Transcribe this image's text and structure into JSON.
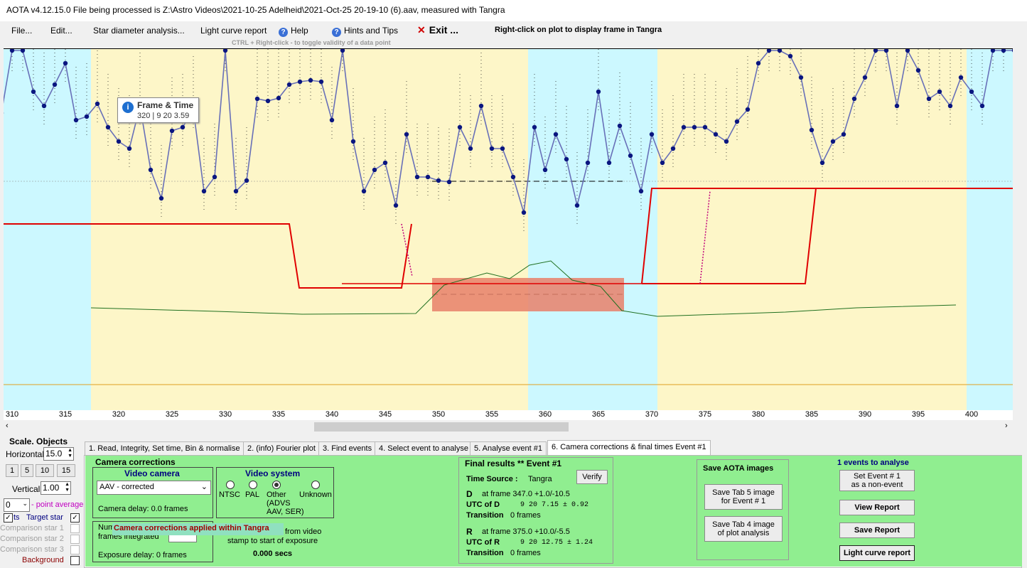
{
  "window": {
    "title": "AOTA v4.12.15.0     File being processed is Z:\\Astro Videos\\2021-10-25 Adelheid\\2021-Oct-25 20-19-10 (6).aav, measured with Tangra"
  },
  "menu": {
    "file": "File...",
    "edit": "Edit...",
    "star_diameter": "Star diameter analysis...",
    "light_curve_report": "Light curve report",
    "help": "Help",
    "hints": "Hints and Tips",
    "exit": "Exit ...",
    "right_click_hint": "Right-click on plot to display frame in Tangra",
    "ctrl_hint": "CTRL + Right-click  -  to toggle validity of a data point"
  },
  "plot": {
    "tooltip_title": "Frame & Time",
    "tooltip_value": "320 |  9 20  3.59",
    "x_ticks": [
      "310",
      "315",
      "320",
      "325",
      "330",
      "335",
      "340",
      "345",
      "350",
      "355",
      "360",
      "365",
      "370",
      "375",
      "380",
      "385",
      "390",
      "395",
      "400"
    ]
  },
  "chart_data": {
    "type": "line",
    "x_start": 308,
    "y_frame_values": [
      93,
      91,
      104,
      106,
      94,
      92,
      95,
      98,
      90,
      90.5,
      92.3,
      89,
      87,
      86,
      92,
      83,
      79,
      88.5,
      89,
      91.5,
      80,
      82,
      101,
      80,
      81.5,
      93,
      92.7,
      93.1,
      95,
      95.4,
      95.6,
      95.4,
      90,
      100.5,
      87,
      80,
      83,
      84,
      78,
      88,
      82,
      82,
      81.5,
      81.3,
      89,
      86,
      92,
      86,
      86,
      82,
      77,
      89,
      83,
      88,
      84.5,
      78,
      84,
      94,
      84,
      89.2,
      85,
      80,
      88,
      84,
      86,
      89,
      89,
      89,
      88,
      87,
      89.8,
      91.5,
      98,
      100,
      102,
      99,
      96,
      88.6,
      84,
      87,
      88,
      93,
      96,
      101.5,
      110,
      92,
      107,
      97,
      93,
      94,
      92,
      96,
      94,
      92,
      100,
      100,
      106,
      111,
      107,
      97
    ],
    "model_levels": {
      "baseline": 100,
      "event_bottom": 94
    },
    "x_range": [
      308,
      403
    ]
  },
  "left": {
    "scale_objects": "Scale.  Objects",
    "horizontal_label": "Horizontal",
    "horizontal_value": "15.0",
    "btn1": "1",
    "btn5": "5",
    "btn10": "10",
    "btn15": "15",
    "vertical_label": "Vertical",
    "vertical_value": "1.00",
    "point_avg_value": "0",
    "point_avg_label": "- point average",
    "pts": "ts",
    "target_star": "Target star",
    "comp1": "Comparison star 1",
    "comp2": "Comparison star 2",
    "comp3": "Comparison star 3",
    "background": "Background"
  },
  "tabs": [
    "1.  Read, Integrity, Set time, Bin & normalise",
    "2. (info)  Fourier plot",
    "3. Find events",
    "4. Select event to analyse",
    "5. Analyse event #1",
    "6. Camera corrections & final times Event #1"
  ],
  "camera": {
    "section_title": "Camera corrections",
    "video_camera_title": "Video camera",
    "camera_select": "AAV - corrected",
    "camera_delay": "Camera delay: 0.0 frames",
    "video_system_title": "Video system",
    "ntsc": "NTSC",
    "pal": "PAL",
    "other": "Other",
    "other_sub": "(ADVS\nAAV, SER)",
    "unknown": "Unknown",
    "num_frames": "Num",
    "frames_integrated": "frames integrated",
    "applied_banner": "Camera corrections applied within Tangra",
    "from_video": "from video",
    "stamp_to_start": "stamp to start of exposure",
    "offset_secs": "0.000 secs",
    "exposure_delay": "Exposure delay: 0 frames"
  },
  "final": {
    "title": "Final results  **   Event #1",
    "time_source_label": "Time Source :",
    "time_source_value": "Tangra",
    "verify": "Verify",
    "d_label": "D",
    "d_frame": "at frame 347.0  +1.0/-10.5",
    "utc_d_label": "UTC of D",
    "utc_d_value": "9  20   7.15  ± 0.92",
    "transition_label": "Transition",
    "d_transition": "0 frames",
    "r_label": "R",
    "r_frame": "at frame 375.0  +10.0/-5.5",
    "utc_r_label": "UTC of R",
    "utc_r_value": "9  20  12.75  ± 1.24",
    "r_transition": "0 frames"
  },
  "save": {
    "title": "Save AOTA images",
    "tab5": "Save Tab 5 image\nfor Event # 1",
    "tab4": "Save Tab 4 image\nof plot analysis"
  },
  "events": {
    "title": "1  events to analyse",
    "set_non_event": "Set Event # 1\nas a non-event",
    "view_report": "View Report",
    "save_report": "Save Report",
    "lc_report": "Light curve report"
  }
}
